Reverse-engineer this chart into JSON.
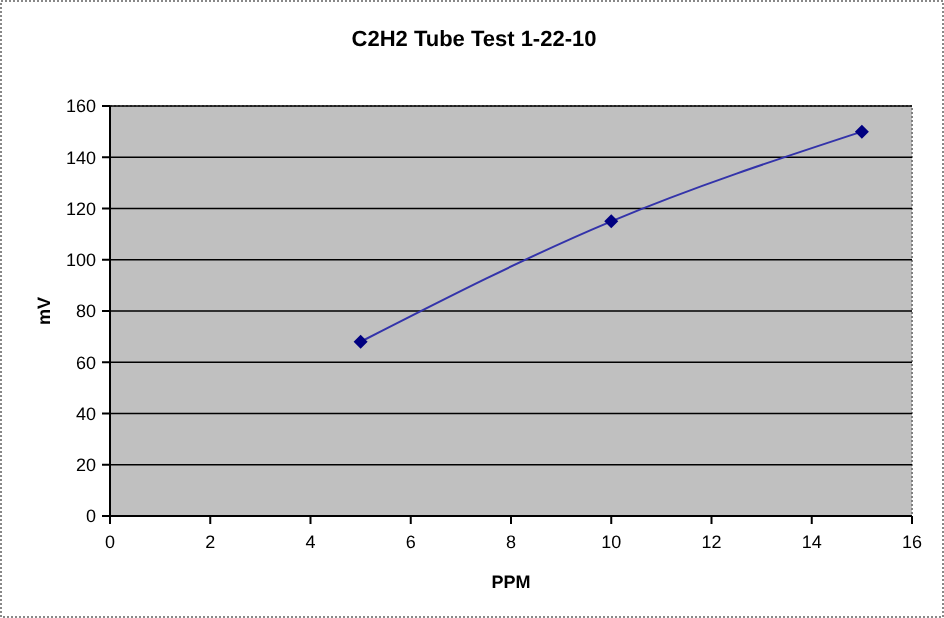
{
  "chart_data": {
    "type": "line",
    "title": "C2H2 Tube Test 1-22-10",
    "xlabel": "PPM",
    "ylabel": "mV",
    "x": [
      5,
      10,
      15
    ],
    "series": [
      {
        "color": "#3333aa",
        "values": [
          68,
          115,
          150
        ]
      }
    ],
    "xlim": [
      0,
      16
    ],
    "xticks": [
      0,
      2,
      4,
      6,
      8,
      10,
      12,
      14,
      16
    ],
    "ylim": [
      0,
      160
    ],
    "yticks": [
      0,
      20,
      40,
      60,
      80,
      100,
      120,
      140,
      160
    ],
    "grid": "y",
    "marker": "diamond",
    "line_style": "solid"
  }
}
